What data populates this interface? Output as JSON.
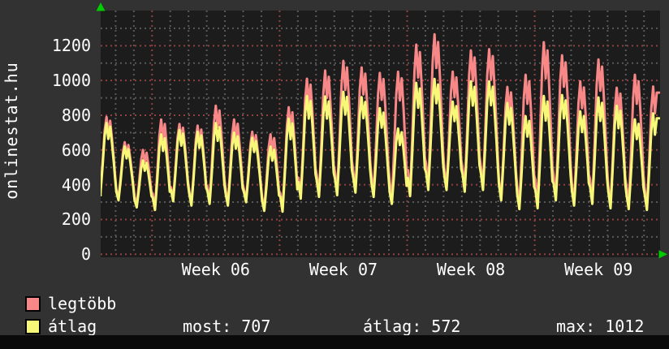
{
  "chart_data": {
    "type": "line",
    "title": "onlinestat.hu",
    "x_axis": {
      "tick_labels": [
        "Week 06",
        "Week 07",
        "Week 08",
        "Week 09"
      ],
      "minor_grid": "1 day",
      "major_grid": "1 week"
    },
    "y_axis": {
      "ticks": [
        0,
        200,
        400,
        600,
        800,
        1000,
        1200
      ],
      "range": [
        0,
        1400
      ],
      "minor_step": 100
    },
    "series": [
      {
        "name": "legtöbb",
        "color": "#f88888",
        "field": "legtobb"
      },
      {
        "name": "átlag",
        "color": "#f8f878",
        "field": "atlag"
      }
    ],
    "days": [
      {
        "legtobb": 790,
        "atlag": 755,
        "min": 340
      },
      {
        "legtobb": 645,
        "atlag": 620,
        "min": 310
      },
      {
        "legtobb": 600,
        "atlag": 540,
        "min": 270
      },
      {
        "legtobb": 775,
        "atlag": 690,
        "min": 255
      },
      {
        "legtobb": 750,
        "atlag": 715,
        "min": 305
      },
      {
        "legtobb": 740,
        "atlag": 705,
        "min": 280
      },
      {
        "legtobb": 855,
        "atlag": 755,
        "min": 290
      },
      {
        "legtobb": 775,
        "atlag": 700,
        "min": 280
      },
      {
        "legtobb": 705,
        "atlag": 670,
        "min": 300
      },
      {
        "legtobb": 690,
        "atlag": 620,
        "min": 250
      },
      {
        "legtobb": 846,
        "atlag": 780,
        "min": 245
      },
      {
        "legtobb": 1010,
        "atlag": 911,
        "min": 320
      },
      {
        "legtobb": 1057,
        "atlag": 908,
        "min": 330
      },
      {
        "legtobb": 1113,
        "atlag": 935,
        "min": 340
      },
      {
        "legtobb": 1075,
        "atlag": 904,
        "min": 355
      },
      {
        "legtobb": 1043,
        "atlag": 841,
        "min": 330
      },
      {
        "legtobb": 1050,
        "atlag": 724,
        "min": 290
      },
      {
        "legtobb": 1206,
        "atlag": 986,
        "min": 335
      },
      {
        "legtobb": 1266,
        "atlag": 1009,
        "min": 370
      },
      {
        "legtobb": 1051,
        "atlag": 878,
        "min": 370
      },
      {
        "legtobb": 1173,
        "atlag": 995,
        "min": 360
      },
      {
        "legtobb": 1180,
        "atlag": 995,
        "min": 370
      },
      {
        "legtobb": 963,
        "atlag": 870,
        "min": 310
      },
      {
        "legtobb": 1033,
        "atlag": 794,
        "min": 260
      },
      {
        "legtobb": 1220,
        "atlag": 911,
        "min": 265
      },
      {
        "legtobb": 1145,
        "atlag": 916,
        "min": 310
      },
      {
        "legtobb": 995,
        "atlag": 822,
        "min": 280
      },
      {
        "legtobb": 1121,
        "atlag": 902,
        "min": 290
      },
      {
        "legtobb": 958,
        "atlag": 855,
        "min": 265
      },
      {
        "legtobb": 1033,
        "atlag": 776,
        "min": 260
      },
      {
        "legtobb": 965,
        "atlag": 810,
        "min": 255
      }
    ],
    "stats": {
      "most": 707,
      "atlag": 572,
      "max": 1012
    }
  },
  "footer": {
    "legend": [
      {
        "label": "legtöbb",
        "color": "#f88888"
      },
      {
        "label": "átlag",
        "color": "#f8f878"
      }
    ],
    "stats": [
      {
        "text": "most: 707"
      },
      {
        "text": "átlag: 572"
      },
      {
        "text": "max: 1012"
      }
    ]
  },
  "colors": {
    "background": "#323232",
    "plot_background": "#1c1c1c",
    "grid_minor": "#585858",
    "grid_major": "#8f4040",
    "text": "#ffffff",
    "arrow": "#00cc00",
    "bottom_bar": "#0a0a0a"
  }
}
